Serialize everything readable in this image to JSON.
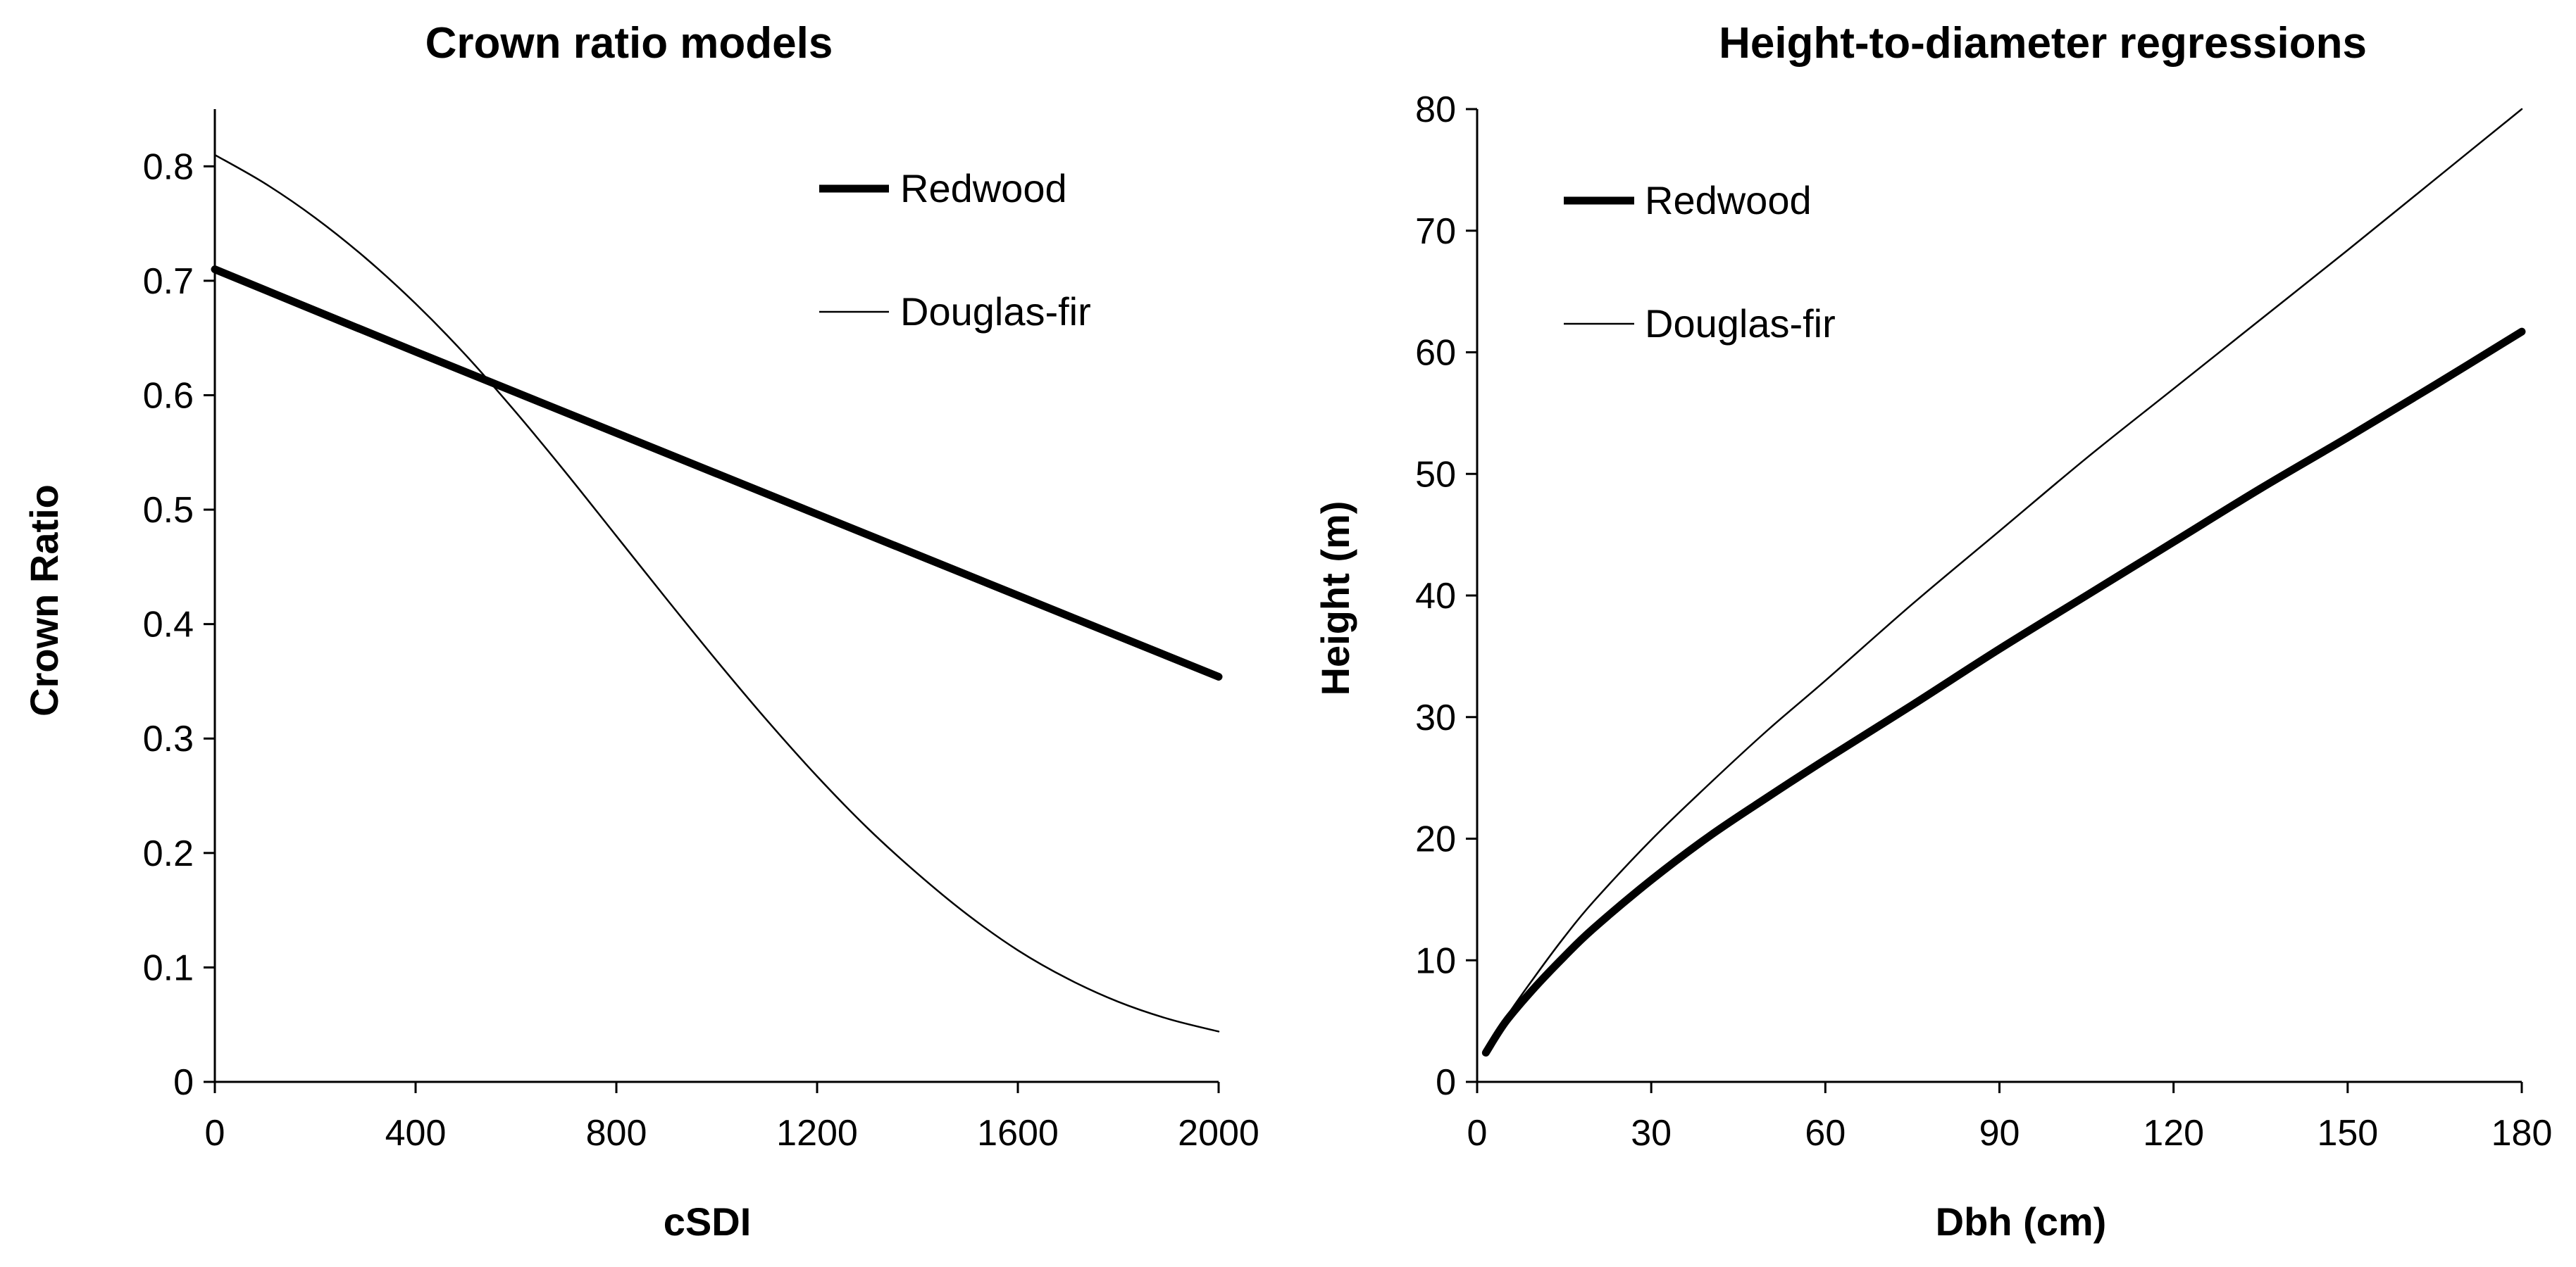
{
  "chart_data": [
    {
      "type": "line",
      "title": "Crown ratio models",
      "xlabel": "cSDI",
      "ylabel": "Crown Ratio",
      "xlim": [
        0,
        2000
      ],
      "ylim": [
        0,
        0.85
      ],
      "x_ticks": [
        0,
        400,
        800,
        1200,
        1600,
        2000
      ],
      "y_ticks": [
        0,
        0.1,
        0.2,
        0.3,
        0.4,
        0.5,
        0.6,
        0.7,
        0.8
      ],
      "x_tick_labels": [
        "0",
        "400",
        "800",
        "1200",
        "1600",
        "2000"
      ],
      "y_tick_labels": [
        "0",
        "0.1",
        "0.2",
        "0.3",
        "0.4",
        "0.5",
        "0.6",
        "0.7",
        "0.8"
      ],
      "legend_position": "top-right",
      "series": [
        {
          "name": "Redwood",
          "style": "thick",
          "x": [
            0,
            400,
            800,
            1200,
            1600,
            2000
          ],
          "y": [
            0.71,
            0.638,
            0.567,
            0.496,
            0.425,
            0.354
          ]
        },
        {
          "name": "Douglas-fir",
          "style": "thin",
          "x": [
            0,
            100,
            200,
            300,
            400,
            500,
            600,
            700,
            800,
            900,
            1000,
            1100,
            1200,
            1300,
            1400,
            1500,
            1600,
            1700,
            1800,
            1900,
            2000
          ],
          "y": [
            0.81,
            0.785,
            0.755,
            0.72,
            0.68,
            0.635,
            0.585,
            0.532,
            0.477,
            0.422,
            0.368,
            0.316,
            0.267,
            0.222,
            0.182,
            0.146,
            0.115,
            0.09,
            0.07,
            0.055,
            0.044
          ]
        }
      ]
    },
    {
      "type": "line",
      "title": "Height-to-diameter regressions",
      "xlabel": "Dbh (cm)",
      "ylabel": "Height (m)",
      "xlim": [
        0,
        180
      ],
      "ylim": [
        0,
        80
      ],
      "x_ticks": [
        0,
        30,
        60,
        90,
        120,
        150,
        180
      ],
      "y_ticks": [
        0,
        10,
        20,
        30,
        40,
        50,
        60,
        70,
        80
      ],
      "x_tick_labels": [
        "0",
        "30",
        "60",
        "90",
        "120",
        "150",
        "180"
      ],
      "y_tick_labels": [
        "0",
        "10",
        "20",
        "30",
        "40",
        "50",
        "60",
        "70",
        "80"
      ],
      "legend_position": "top-left",
      "series": [
        {
          "name": "Redwood",
          "style": "thick",
          "x": [
            1.5,
            5,
            10,
            15,
            20,
            30,
            40,
            50,
            60,
            75,
            90,
            105,
            120,
            135,
            150,
            165,
            180
          ],
          "y": [
            2.4,
            5.0,
            7.8,
            10.3,
            12.6,
            16.6,
            20.2,
            23.4,
            26.5,
            31.0,
            35.6,
            40.0,
            44.4,
            48.8,
            53.0,
            57.3,
            61.7
          ]
        },
        {
          "name": "Douglas-fir",
          "style": "thin",
          "x": [
            1.5,
            5,
            10,
            15,
            20,
            30,
            40,
            50,
            60,
            75,
            90,
            105,
            120,
            135,
            150,
            165,
            180
          ],
          "y": [
            2.4,
            5.3,
            8.7,
            11.9,
            14.8,
            19.9,
            24.5,
            28.9,
            33.0,
            39.3,
            45.3,
            51.3,
            57.0,
            62.7,
            68.4,
            74.2,
            80.0
          ]
        }
      ]
    }
  ]
}
